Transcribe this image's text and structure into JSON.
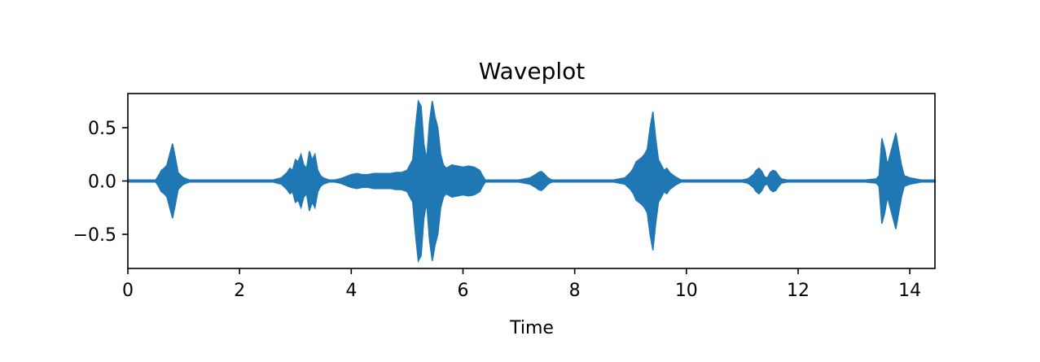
{
  "chart_data": {
    "type": "area",
    "title": "Waveplot",
    "xlabel": "Time",
    "ylabel": "",
    "xlim": [
      0,
      14.45
    ],
    "ylim": [
      -0.82,
      0.82
    ],
    "x_ticks": [
      0,
      2,
      4,
      6,
      8,
      10,
      12,
      14
    ],
    "x_tick_labels": [
      "0",
      "2",
      "4",
      "6",
      "8",
      "10",
      "12",
      14
    ],
    "y_ticks": [
      0.5,
      0.0,
      -0.5
    ],
    "y_tick_labels": [
      "0.5",
      "0.0",
      "−0.5"
    ],
    "grid": false,
    "color": "#1f77b4",
    "series": [
      {
        "x": [
          0.0,
          0.1,
          0.2,
          0.3,
          0.4,
          0.5,
          0.55,
          0.6,
          0.65,
          0.7,
          0.75,
          0.8,
          0.85,
          0.9,
          0.95,
          1.0,
          1.1,
          1.2,
          1.4,
          1.6,
          1.8,
          2.0,
          2.2,
          2.4,
          2.6,
          2.75,
          2.85,
          2.9,
          2.95,
          3.0,
          3.05,
          3.1,
          3.15,
          3.2,
          3.25,
          3.3,
          3.35,
          3.4,
          3.45,
          3.5,
          3.55,
          3.6,
          3.7,
          3.8,
          3.9,
          4.0,
          4.1,
          4.2,
          4.3,
          4.4,
          4.5,
          4.6,
          4.7,
          4.8,
          4.9,
          5.0,
          5.1,
          5.15,
          5.2,
          5.25,
          5.3,
          5.35,
          5.4,
          5.45,
          5.5,
          5.55,
          5.6,
          5.65,
          5.7,
          5.8,
          5.9,
          6.0,
          6.1,
          6.2,
          6.3,
          6.35,
          6.4,
          6.6,
          6.8,
          7.0,
          7.2,
          7.3,
          7.35,
          7.4,
          7.45,
          7.5,
          7.55,
          7.6,
          7.7,
          7.9,
          8.1,
          8.3,
          8.5,
          8.7,
          8.9,
          9.0,
          9.05,
          9.1,
          9.15,
          9.2,
          9.25,
          9.3,
          9.35,
          9.4,
          9.45,
          9.5,
          9.55,
          9.6,
          9.65,
          9.7,
          9.8,
          9.9,
          10.0,
          10.2,
          10.4,
          10.6,
          10.8,
          11.0,
          11.1,
          11.2,
          11.25,
          11.3,
          11.35,
          11.4,
          11.45,
          11.5,
          11.55,
          11.6,
          11.65,
          11.7,
          11.8,
          12.0,
          12.2,
          12.4,
          12.6,
          12.8,
          13.0,
          13.2,
          13.4,
          13.45,
          13.5,
          13.55,
          13.6,
          13.65,
          13.7,
          13.75,
          13.8,
          13.85,
          13.9,
          14.0,
          14.2,
          14.45
        ],
        "y_max": [
          0.01,
          0.01,
          0.01,
          0.01,
          0.01,
          0.01,
          0.05,
          0.1,
          0.12,
          0.15,
          0.25,
          0.35,
          0.22,
          0.08,
          0.05,
          0.03,
          0.01,
          0.01,
          0.01,
          0.01,
          0.01,
          0.01,
          0.01,
          0.01,
          0.01,
          0.03,
          0.08,
          0.12,
          0.1,
          0.2,
          0.18,
          0.25,
          0.15,
          0.12,
          0.28,
          0.2,
          0.25,
          0.1,
          0.05,
          0.03,
          0.02,
          0.01,
          0.01,
          0.02,
          0.04,
          0.06,
          0.07,
          0.06,
          0.06,
          0.07,
          0.07,
          0.07,
          0.07,
          0.08,
          0.08,
          0.1,
          0.2,
          0.5,
          0.75,
          0.7,
          0.35,
          0.2,
          0.55,
          0.75,
          0.6,
          0.5,
          0.25,
          0.15,
          0.12,
          0.15,
          0.14,
          0.13,
          0.14,
          0.13,
          0.1,
          0.05,
          0.01,
          0.01,
          0.01,
          0.01,
          0.03,
          0.06,
          0.08,
          0.09,
          0.07,
          0.04,
          0.02,
          0.01,
          0.01,
          0.01,
          0.01,
          0.01,
          0.01,
          0.01,
          0.03,
          0.08,
          0.12,
          0.18,
          0.2,
          0.22,
          0.25,
          0.3,
          0.5,
          0.65,
          0.4,
          0.2,
          0.15,
          0.1,
          0.12,
          0.08,
          0.04,
          0.01,
          0.01,
          0.01,
          0.01,
          0.01,
          0.01,
          0.01,
          0.02,
          0.06,
          0.1,
          0.12,
          0.09,
          0.04,
          0.03,
          0.08,
          0.1,
          0.09,
          0.05,
          0.02,
          0.01,
          0.01,
          0.01,
          0.01,
          0.01,
          0.01,
          0.01,
          0.01,
          0.02,
          0.05,
          0.4,
          0.3,
          0.15,
          0.25,
          0.35,
          0.45,
          0.3,
          0.15,
          0.05,
          0.03,
          0.01,
          0.01
        ],
        "y_min": [
          -0.01,
          -0.01,
          -0.01,
          -0.01,
          -0.01,
          -0.01,
          -0.05,
          -0.1,
          -0.12,
          -0.15,
          -0.25,
          -0.35,
          -0.22,
          -0.08,
          -0.05,
          -0.03,
          -0.01,
          -0.01,
          -0.01,
          -0.01,
          -0.01,
          -0.01,
          -0.01,
          -0.01,
          -0.01,
          -0.03,
          -0.08,
          -0.12,
          -0.1,
          -0.2,
          -0.18,
          -0.25,
          -0.15,
          -0.12,
          -0.28,
          -0.2,
          -0.25,
          -0.1,
          -0.05,
          -0.03,
          -0.02,
          -0.01,
          -0.01,
          -0.02,
          -0.04,
          -0.06,
          -0.07,
          -0.06,
          -0.06,
          -0.07,
          -0.07,
          -0.07,
          -0.07,
          -0.08,
          -0.08,
          -0.1,
          -0.2,
          -0.5,
          -0.75,
          -0.7,
          -0.35,
          -0.2,
          -0.55,
          -0.75,
          -0.6,
          -0.5,
          -0.25,
          -0.15,
          -0.12,
          -0.15,
          -0.14,
          -0.13,
          -0.14,
          -0.13,
          -0.1,
          -0.05,
          -0.01,
          -0.01,
          -0.01,
          -0.01,
          -0.03,
          -0.06,
          -0.08,
          -0.09,
          -0.07,
          -0.04,
          -0.02,
          -0.01,
          -0.01,
          -0.01,
          -0.01,
          -0.01,
          -0.01,
          -0.01,
          -0.03,
          -0.08,
          -0.12,
          -0.18,
          -0.2,
          -0.22,
          -0.25,
          -0.3,
          -0.5,
          -0.65,
          -0.4,
          -0.2,
          -0.15,
          -0.1,
          -0.12,
          -0.08,
          -0.04,
          -0.01,
          -0.01,
          -0.01,
          -0.01,
          -0.01,
          -0.01,
          -0.01,
          -0.02,
          -0.06,
          -0.1,
          -0.12,
          -0.09,
          -0.04,
          -0.03,
          -0.08,
          -0.1,
          -0.09,
          -0.05,
          -0.02,
          -0.01,
          -0.01,
          -0.01,
          -0.01,
          -0.01,
          -0.01,
          -0.01,
          -0.01,
          -0.02,
          -0.05,
          -0.4,
          -0.3,
          -0.15,
          -0.25,
          -0.35,
          -0.45,
          -0.3,
          -0.15,
          -0.05,
          -0.03,
          -0.01,
          -0.01
        ]
      }
    ]
  }
}
